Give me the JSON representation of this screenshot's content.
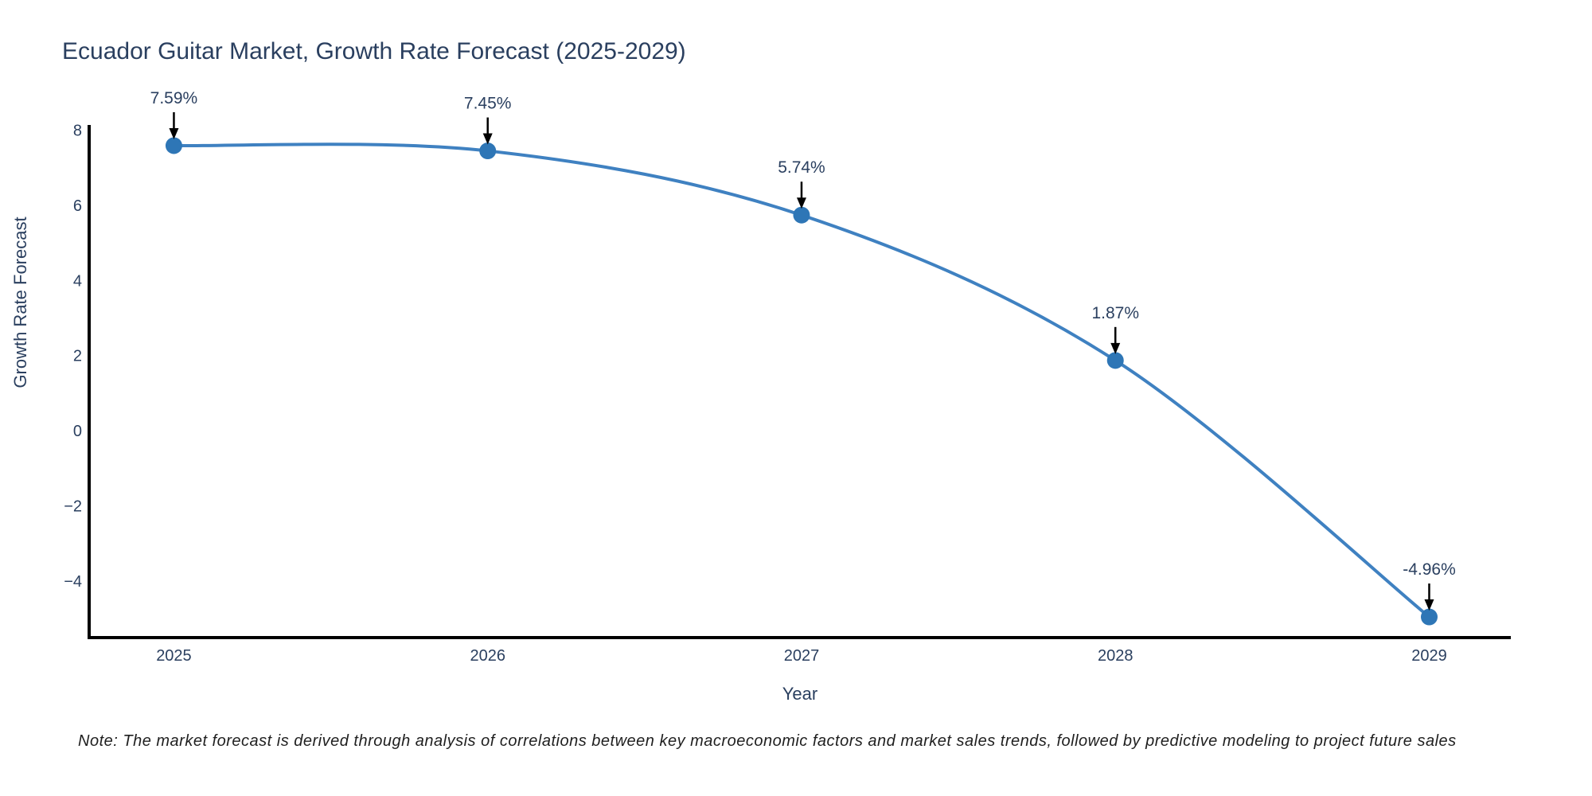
{
  "chart_data": {
    "type": "line",
    "title": "Ecuador Guitar Market, Growth Rate Forecast (2025-2029)",
    "xlabel": "Year",
    "ylabel": "Growth Rate Forecast",
    "x": [
      2025,
      2026,
      2027,
      2028,
      2029
    ],
    "values": [
      7.59,
      7.45,
      5.74,
      1.87,
      -4.96
    ],
    "point_labels": [
      "7.59%",
      "7.45%",
      "5.74%",
      "1.87%",
      "-4.96%"
    ],
    "x_tick_labels": [
      "2025",
      "2026",
      "2027",
      "2028",
      "2029"
    ],
    "y_tick_values": [
      8,
      6,
      4,
      2,
      0,
      -2,
      -4
    ],
    "y_tick_labels": [
      "8",
      "6",
      "4",
      "2",
      "0",
      "−2",
      "−4"
    ],
    "xlim": [
      2024.73,
      2029.26
    ],
    "ylim": [
      -5.51,
      8.14
    ],
    "grid": false,
    "legend": "none",
    "line_shape": "spline",
    "colors": {
      "line": "#3f81c1",
      "marker": "#2e76b6",
      "axis": "#000000",
      "title_text": "#2a3f5f",
      "tick_text": "#2a3f5f",
      "annotation_text": "#2a3f5f",
      "arrow": "#000000",
      "background": "#ffffff"
    }
  },
  "note": "Note: The market forecast is derived through analysis of correlations between key macroeconomic factors and market sales trends, followed by predictive modeling to project future sales"
}
